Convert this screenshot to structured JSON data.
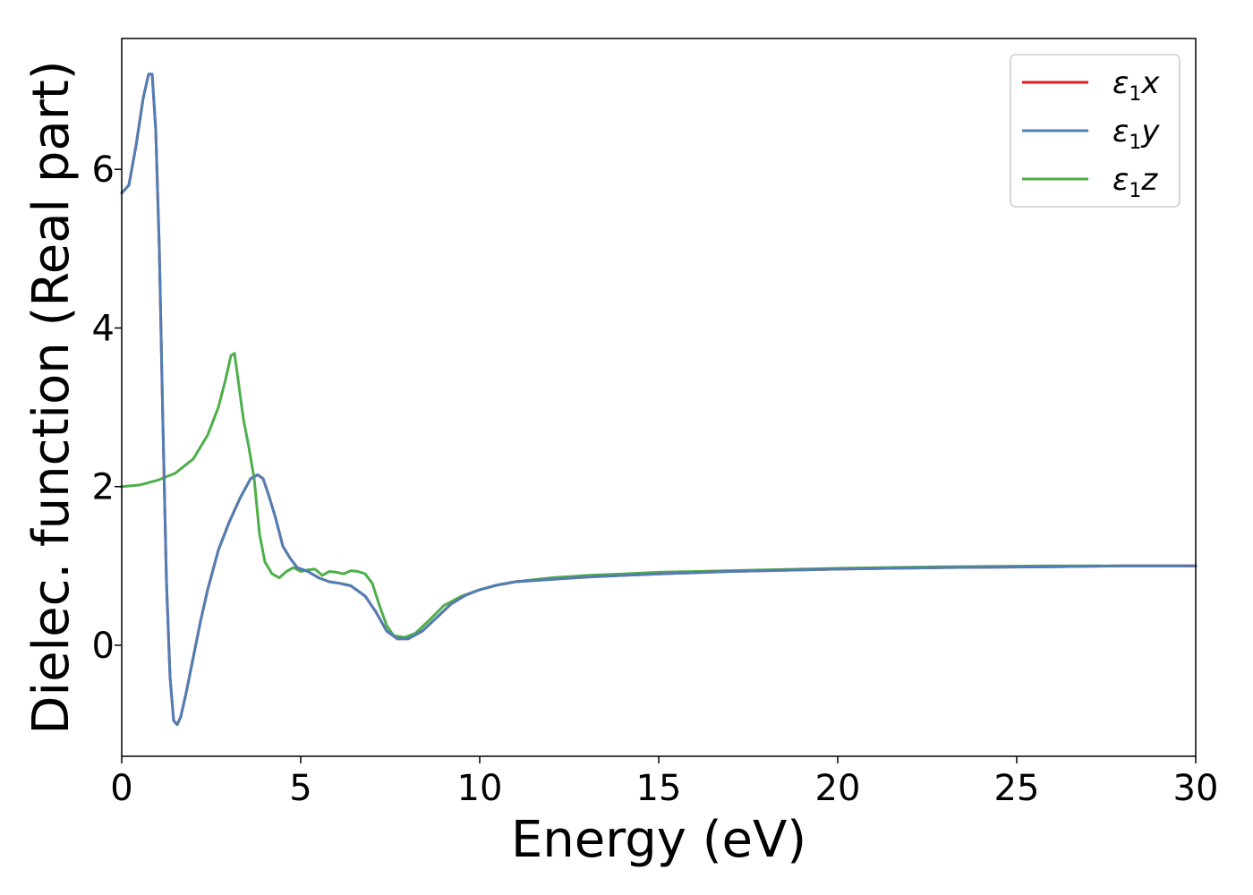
{
  "chart_data": {
    "type": "line",
    "xlabel": "Energy (eV)",
    "ylabel": "Dielec. function (Real part)",
    "xlim": [
      0,
      30
    ],
    "ylim": [
      -1.4,
      7.65
    ],
    "xticks": [
      0,
      5,
      10,
      15,
      20,
      25,
      30
    ],
    "yticks": [
      0,
      2,
      4,
      6
    ],
    "grid": false,
    "legend_position": "top-right",
    "series": [
      {
        "name": "ε1x",
        "legend": {
          "base": "ε",
          "sub": "1",
          "var": "x"
        },
        "color": "#e41a1c",
        "x": [
          0,
          0.2,
          0.4,
          0.6,
          0.75,
          0.85,
          0.95,
          1.05,
          1.15,
          1.25,
          1.35,
          1.45,
          1.55,
          1.65,
          1.8,
          2.0,
          2.2,
          2.4,
          2.7,
          3.0,
          3.3,
          3.6,
          3.8,
          3.95,
          4.1,
          4.3,
          4.5,
          4.7,
          4.9,
          5.2,
          5.5,
          5.8,
          6.1,
          6.4,
          6.8,
          7.1,
          7.4,
          7.7,
          8.0,
          8.4,
          8.8,
          9.2,
          9.6,
          10.0,
          10.5,
          11.0,
          12.0,
          13.0,
          14.0,
          15.0,
          17.0,
          20.0,
          23.0,
          26.0,
          28.0,
          30.0
        ],
        "y": [
          5.7,
          5.8,
          6.3,
          6.9,
          7.2,
          7.2,
          6.5,
          5.0,
          2.8,
          0.8,
          -0.4,
          -0.95,
          -1.0,
          -0.9,
          -0.6,
          -0.15,
          0.3,
          0.7,
          1.2,
          1.55,
          1.85,
          2.1,
          2.15,
          2.1,
          1.9,
          1.6,
          1.25,
          1.1,
          0.98,
          0.93,
          0.85,
          0.8,
          0.78,
          0.75,
          0.62,
          0.42,
          0.18,
          0.08,
          0.08,
          0.18,
          0.35,
          0.52,
          0.63,
          0.7,
          0.76,
          0.8,
          0.83,
          0.86,
          0.88,
          0.9,
          0.93,
          0.96,
          0.98,
          0.99,
          1.0,
          1.0
        ]
      },
      {
        "name": "ε1y",
        "legend": {
          "base": "ε",
          "sub": "1",
          "var": "y"
        },
        "color": "#4f7fb5",
        "x": [
          0,
          0.2,
          0.4,
          0.6,
          0.75,
          0.85,
          0.95,
          1.05,
          1.15,
          1.25,
          1.35,
          1.45,
          1.55,
          1.65,
          1.8,
          2.0,
          2.2,
          2.4,
          2.7,
          3.0,
          3.3,
          3.6,
          3.8,
          3.95,
          4.1,
          4.3,
          4.5,
          4.7,
          4.9,
          5.2,
          5.5,
          5.8,
          6.1,
          6.4,
          6.8,
          7.1,
          7.4,
          7.7,
          8.0,
          8.4,
          8.8,
          9.2,
          9.6,
          10.0,
          10.5,
          11.0,
          12.0,
          13.0,
          14.0,
          15.0,
          17.0,
          20.0,
          23.0,
          26.0,
          28.0,
          30.0
        ],
        "y": [
          5.7,
          5.8,
          6.3,
          6.9,
          7.2,
          7.2,
          6.5,
          5.0,
          2.8,
          0.8,
          -0.4,
          -0.95,
          -1.0,
          -0.9,
          -0.6,
          -0.15,
          0.3,
          0.7,
          1.2,
          1.55,
          1.85,
          2.1,
          2.15,
          2.1,
          1.9,
          1.6,
          1.25,
          1.1,
          0.98,
          0.93,
          0.85,
          0.8,
          0.78,
          0.75,
          0.62,
          0.42,
          0.18,
          0.08,
          0.08,
          0.18,
          0.35,
          0.52,
          0.63,
          0.7,
          0.76,
          0.8,
          0.83,
          0.86,
          0.88,
          0.9,
          0.93,
          0.96,
          0.98,
          0.99,
          1.0,
          1.0
        ]
      },
      {
        "name": "ε1z",
        "legend": {
          "base": "ε",
          "sub": "1",
          "var": "z"
        },
        "color": "#4daf4a",
        "x": [
          0,
          0.5,
          1.0,
          1.5,
          2.0,
          2.4,
          2.7,
          2.9,
          3.05,
          3.15,
          3.25,
          3.4,
          3.55,
          3.7,
          3.85,
          4.0,
          4.2,
          4.4,
          4.6,
          4.8,
          5.0,
          5.2,
          5.4,
          5.6,
          5.8,
          6.0,
          6.2,
          6.4,
          6.6,
          6.8,
          7.0,
          7.2,
          7.4,
          7.6,
          7.9,
          8.2,
          8.6,
          9.0,
          9.5,
          10.0,
          10.5,
          11.0,
          12.0,
          13.0,
          14.0,
          15.0,
          17.0,
          20.0,
          23.0,
          26.0,
          28.0,
          30.0
        ],
        "y": [
          2.0,
          2.02,
          2.08,
          2.17,
          2.35,
          2.65,
          3.0,
          3.35,
          3.65,
          3.68,
          3.35,
          2.85,
          2.5,
          2.1,
          1.4,
          1.05,
          0.9,
          0.85,
          0.93,
          0.98,
          0.93,
          0.95,
          0.96,
          0.88,
          0.93,
          0.92,
          0.9,
          0.94,
          0.93,
          0.9,
          0.78,
          0.5,
          0.25,
          0.12,
          0.1,
          0.15,
          0.32,
          0.5,
          0.62,
          0.7,
          0.76,
          0.8,
          0.85,
          0.88,
          0.9,
          0.92,
          0.94,
          0.97,
          0.99,
          1.0,
          1.0,
          1.0
        ]
      }
    ]
  }
}
